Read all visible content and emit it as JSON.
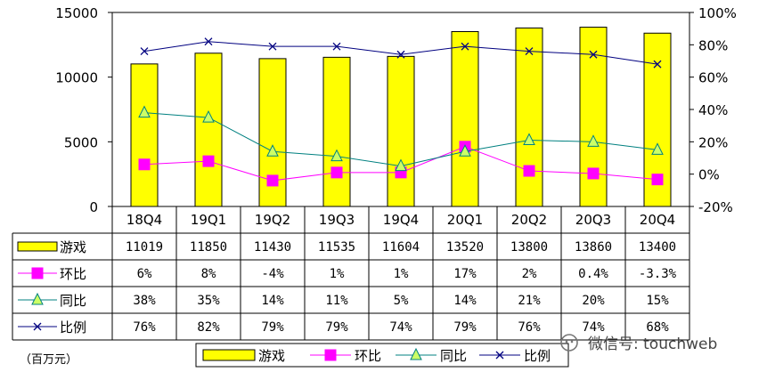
{
  "chart_data": {
    "type": "bar",
    "categories": [
      "18Q4",
      "19Q1",
      "19Q2",
      "19Q3",
      "19Q4",
      "20Q1",
      "20Q2",
      "20Q3",
      "20Q4"
    ],
    "left_axis": {
      "ylim": [
        0,
        15000
      ],
      "ticks": [
        "0",
        "5000",
        "10000",
        "15000"
      ]
    },
    "right_axis": {
      "ylim": [
        -20,
        100
      ],
      "ticks": [
        "-20%",
        "0%",
        "20%",
        "40%",
        "60%",
        "80%",
        "100%"
      ]
    },
    "series": [
      {
        "name": "游戏",
        "kind": "bar",
        "axis": "left",
        "color": "#ffff00",
        "values": [
          11019,
          11850,
          11430,
          11535,
          11604,
          13520,
          13800,
          13860,
          13400
        ],
        "labels": [
          "11019",
          "11850",
          "11430",
          "11535",
          "11604",
          "13520",
          "13800",
          "13860",
          "13400"
        ]
      },
      {
        "name": "环比",
        "kind": "line",
        "marker": "square",
        "axis": "right",
        "color": "#ff00ff",
        "values": [
          6,
          8,
          -4,
          1,
          1,
          17,
          2,
          0.4,
          -3.3
        ],
        "labels": [
          "6%",
          "8%",
          "-4%",
          "1%",
          "1%",
          "17%",
          "2%",
          "0.4%",
          "-3.3%"
        ]
      },
      {
        "name": "同比",
        "kind": "line",
        "marker": "triangle",
        "axis": "right",
        "color": "#008080",
        "values": [
          38,
          35,
          14,
          11,
          5,
          14,
          21,
          20,
          15
        ],
        "labels": [
          "38%",
          "35%",
          "14%",
          "11%",
          "5%",
          "14%",
          "21%",
          "20%",
          "15%"
        ]
      },
      {
        "name": "比例",
        "kind": "line",
        "marker": "x",
        "axis": "right",
        "color": "#000080",
        "values": [
          76,
          82,
          79,
          79,
          74,
          79,
          76,
          74,
          68
        ],
        "labels": [
          "76%",
          "82%",
          "79%",
          "79%",
          "74%",
          "79%",
          "76%",
          "74%",
          "68%"
        ]
      }
    ]
  },
  "unit_label": "（百万元）",
  "watermark": "微信号: touchweb"
}
